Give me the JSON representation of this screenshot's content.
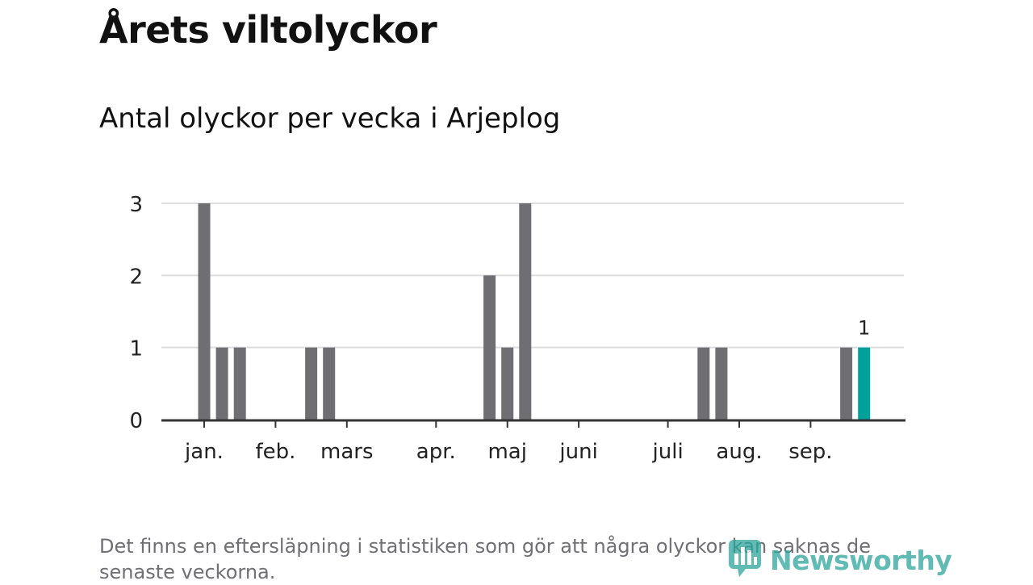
{
  "header": {
    "title": "Årets viltolyckor",
    "subtitle": "Antal olyckor per vecka i Arjeplog"
  },
  "chart_data": {
    "type": "bar",
    "title": "",
    "xlabel": "",
    "ylabel": "",
    "ylim": [
      0,
      3
    ],
    "yticks": [
      0,
      1,
      2,
      3
    ],
    "grid": true,
    "legend": "none",
    "x_tick_labels": [
      "jan.",
      "feb.",
      "mars",
      "apr.",
      "maj",
      "juni",
      "juli",
      "aug.",
      "sep."
    ],
    "month_tick_weeks": [
      1,
      5,
      9,
      14,
      18,
      22,
      27,
      31,
      35
    ],
    "weeks": [
      1,
      2,
      3,
      7,
      8,
      17,
      18,
      19,
      29,
      30,
      37,
      38
    ],
    "values": [
      3,
      1,
      1,
      1,
      1,
      2,
      1,
      3,
      1,
      1,
      1,
      1
    ],
    "highlight_week": 38,
    "highlight_label": "1",
    "colors": {
      "bar": "#6f6e73",
      "highlight": "#00a19a",
      "grid": "#dddddd",
      "axis": "#333333"
    }
  },
  "footer": {
    "note": "Det finns en eftersläpning i statistiken som gör att några olyckor kan saknas de senaste veckorna.",
    "logo_text": "Newsworthy",
    "logo_icon": "newsworthy-logo-icon"
  }
}
